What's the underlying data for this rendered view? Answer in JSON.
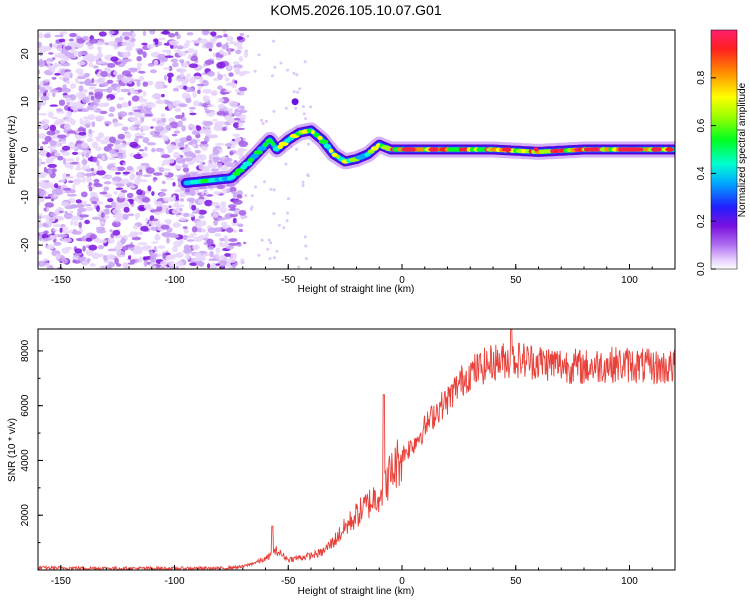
{
  "title": "KOM5.2026.105.10.07.G01",
  "chart_data": [
    {
      "type": "heatmap",
      "name": "spectrogram",
      "xlabel": "Height of straight line (km)",
      "ylabel": "Frequency (Hz)",
      "xlim": [
        -160,
        120
      ],
      "ylim": [
        -25,
        25
      ],
      "xticks": [
        -150,
        -100,
        -50,
        0,
        50,
        100
      ],
      "yticks": [
        -20,
        -10,
        0,
        10,
        20
      ],
      "colorbar": {
        "label": "Normalized spectral amplitude",
        "range": [
          0,
          1
        ],
        "ticks": [
          0.0,
          0.2,
          0.4,
          0.6,
          0.8
        ],
        "tick_labels": [
          "0.0",
          "0.2",
          "0.4",
          "0.6",
          "0.8"
        ]
      },
      "ridge": {
        "x": [
          -95,
          -85,
          -75,
          -68,
          -62,
          -58,
          -55,
          -50,
          -45,
          -40,
          -35,
          -30,
          -25,
          -20,
          -15,
          -10,
          -5,
          0,
          10,
          20,
          40,
          60,
          80,
          100,
          120
        ],
        "y": [
          -7,
          -6.5,
          -6,
          -3,
          0,
          2,
          0,
          2,
          3.5,
          4,
          2,
          -1,
          -2.5,
          -2,
          -1,
          1,
          0,
          0,
          0,
          0,
          0,
          -0.5,
          0,
          0,
          0
        ]
      }
    },
    {
      "type": "line",
      "name": "snr",
      "xlabel": "Height of straight line (km)",
      "ylabel": "SNR (10 * v/v)",
      "xlim": [
        -160,
        120
      ],
      "ylim": [
        0,
        8800
      ],
      "xticks": [
        -150,
        -100,
        -50,
        0,
        50,
        100
      ],
      "yticks": [
        2000,
        4000,
        6000,
        8000
      ],
      "color": "#e8413a",
      "trend": {
        "x": [
          -160,
          -120,
          -80,
          -70,
          -60,
          -55,
          -50,
          -45,
          -40,
          -35,
          -30,
          -25,
          -20,
          -15,
          -10,
          -5,
          0,
          5,
          10,
          15,
          20,
          25,
          30,
          40,
          50,
          60,
          70,
          80,
          90,
          100,
          110,
          120
        ],
        "y": [
          80,
          60,
          60,
          120,
          400,
          700,
          380,
          450,
          520,
          650,
          1050,
          1550,
          2000,
          2400,
          2800,
          3500,
          4200,
          4600,
          5200,
          5800,
          6200,
          6800,
          7200,
          7600,
          7700,
          7600,
          7500,
          7400,
          7500,
          7500,
          7400,
          7400
        ]
      },
      "spikes": [
        {
          "x": -8,
          "y": 6400
        },
        {
          "x": -57,
          "y": 1600
        },
        {
          "x": 48,
          "y": 8800
        }
      ]
    }
  ]
}
